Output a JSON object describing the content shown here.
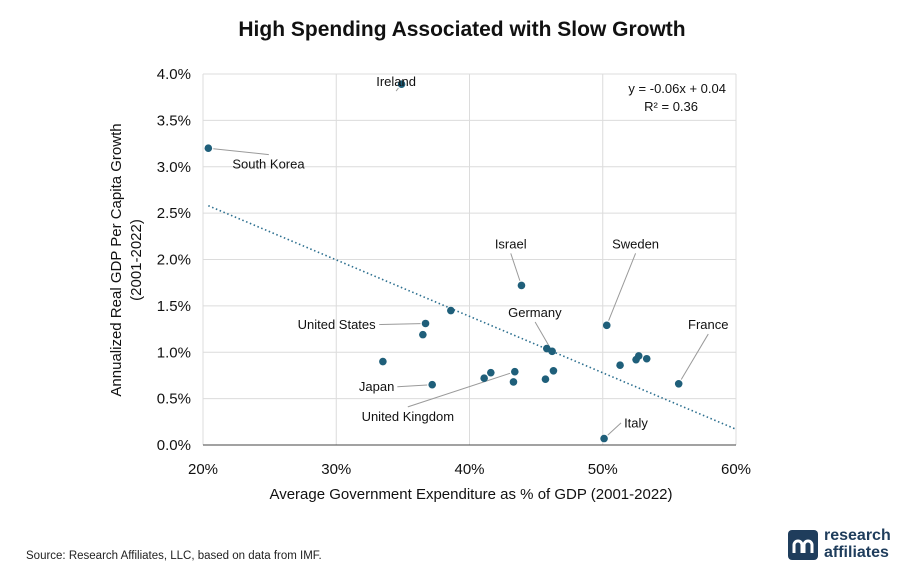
{
  "title": "High Spending Associated with Slow Growth",
  "source": "Source: Research Affiliates, LLC, based on data from IMF.",
  "logo": {
    "line1": "research",
    "line2": "affiliates",
    "mark_icon": "research-affiliates-logo-icon"
  },
  "chart_data": {
    "type": "scatter",
    "title": "High Spending Associated with Slow Growth",
    "xlabel": "Average Government Expenditure as % of GDP (2001-2022)",
    "ylabel_lines": [
      "Annualized Real GDP Per Capita Growth",
      "(2001-2022)"
    ],
    "xlim": [
      0.2,
      0.6
    ],
    "ylim": [
      0.0,
      0.04
    ],
    "x_ticks": [
      0.2,
      0.3,
      0.4,
      0.5,
      0.6
    ],
    "x_tick_labels": [
      "20%",
      "30%",
      "40%",
      "50%",
      "60%"
    ],
    "y_ticks": [
      0.0,
      0.005,
      0.01,
      0.015,
      0.02,
      0.025,
      0.03,
      0.035,
      0.04
    ],
    "y_tick_labels": [
      "0.0%",
      "0.5%",
      "1.0%",
      "1.5%",
      "2.0%",
      "2.5%",
      "3.0%",
      "3.5%",
      "4.0%"
    ],
    "grid": true,
    "point_color": "#1f5f7a",
    "trend_color": "#2c6f8f",
    "trendline": {
      "x": [
        0.204,
        0.6
      ],
      "y": [
        0.0258,
        0.0017
      ]
    },
    "equation": [
      "y = -0.06x + 0.04",
      "R² = 0.36"
    ],
    "points": [
      {
        "x": 0.204,
        "y": 0.032,
        "label": "South Korea",
        "lx": 0.222,
        "ly": 0.0298
      },
      {
        "x": 0.349,
        "y": 0.0389,
        "label": "Ireland",
        "lx": 0.33,
        "ly": 0.0387
      },
      {
        "x": 0.439,
        "y": 0.0172,
        "label": "Israel",
        "lx": 0.419,
        "ly": 0.0212
      },
      {
        "x": 0.503,
        "y": 0.0129,
        "label": "Sweden",
        "lx": 0.507,
        "ly": 0.0212
      },
      {
        "x": 0.557,
        "y": 0.0066,
        "label": "France",
        "lx": 0.564,
        "ly": 0.0125
      },
      {
        "x": 0.367,
        "y": 0.0131,
        "label": "United States",
        "lx": 0.271,
        "ly": 0.0125
      },
      {
        "x": 0.365,
        "y": 0.0119,
        "label": "",
        "lx": null,
        "ly": null
      },
      {
        "x": 0.386,
        "y": 0.0145,
        "label": "",
        "lx": null,
        "ly": null
      },
      {
        "x": 0.335,
        "y": 0.009,
        "label": "",
        "lx": null,
        "ly": null
      },
      {
        "x": 0.372,
        "y": 0.0065,
        "label": "Japan",
        "lx": 0.317,
        "ly": 0.0058
      },
      {
        "x": 0.411,
        "y": 0.0072,
        "label": "",
        "lx": null,
        "ly": null
      },
      {
        "x": 0.416,
        "y": 0.0078,
        "label": "",
        "lx": null,
        "ly": null
      },
      {
        "x": 0.433,
        "y": 0.0068,
        "label": "",
        "lx": null,
        "ly": null
      },
      {
        "x": 0.434,
        "y": 0.0079,
        "label": "United Kingdom",
        "lx": 0.319,
        "ly": 0.0026
      },
      {
        "x": 0.457,
        "y": 0.0071,
        "label": "",
        "lx": null,
        "ly": null
      },
      {
        "x": 0.458,
        "y": 0.0104,
        "label": "",
        "lx": null,
        "ly": null
      },
      {
        "x": 0.462,
        "y": 0.0101,
        "label": "Germany",
        "lx": 0.429,
        "ly": 0.0138
      },
      {
        "x": 0.463,
        "y": 0.008,
        "label": "",
        "lx": null,
        "ly": null
      },
      {
        "x": 0.513,
        "y": 0.0086,
        "label": "",
        "lx": null,
        "ly": null
      },
      {
        "x": 0.525,
        "y": 0.0092,
        "label": "",
        "lx": null,
        "ly": null
      },
      {
        "x": 0.527,
        "y": 0.0096,
        "label": "",
        "lx": null,
        "ly": null
      },
      {
        "x": 0.533,
        "y": 0.0093,
        "label": "",
        "lx": null,
        "ly": null
      },
      {
        "x": 0.501,
        "y": 0.0007,
        "label": "Italy",
        "lx": 0.516,
        "ly": 0.0019
      }
    ]
  }
}
